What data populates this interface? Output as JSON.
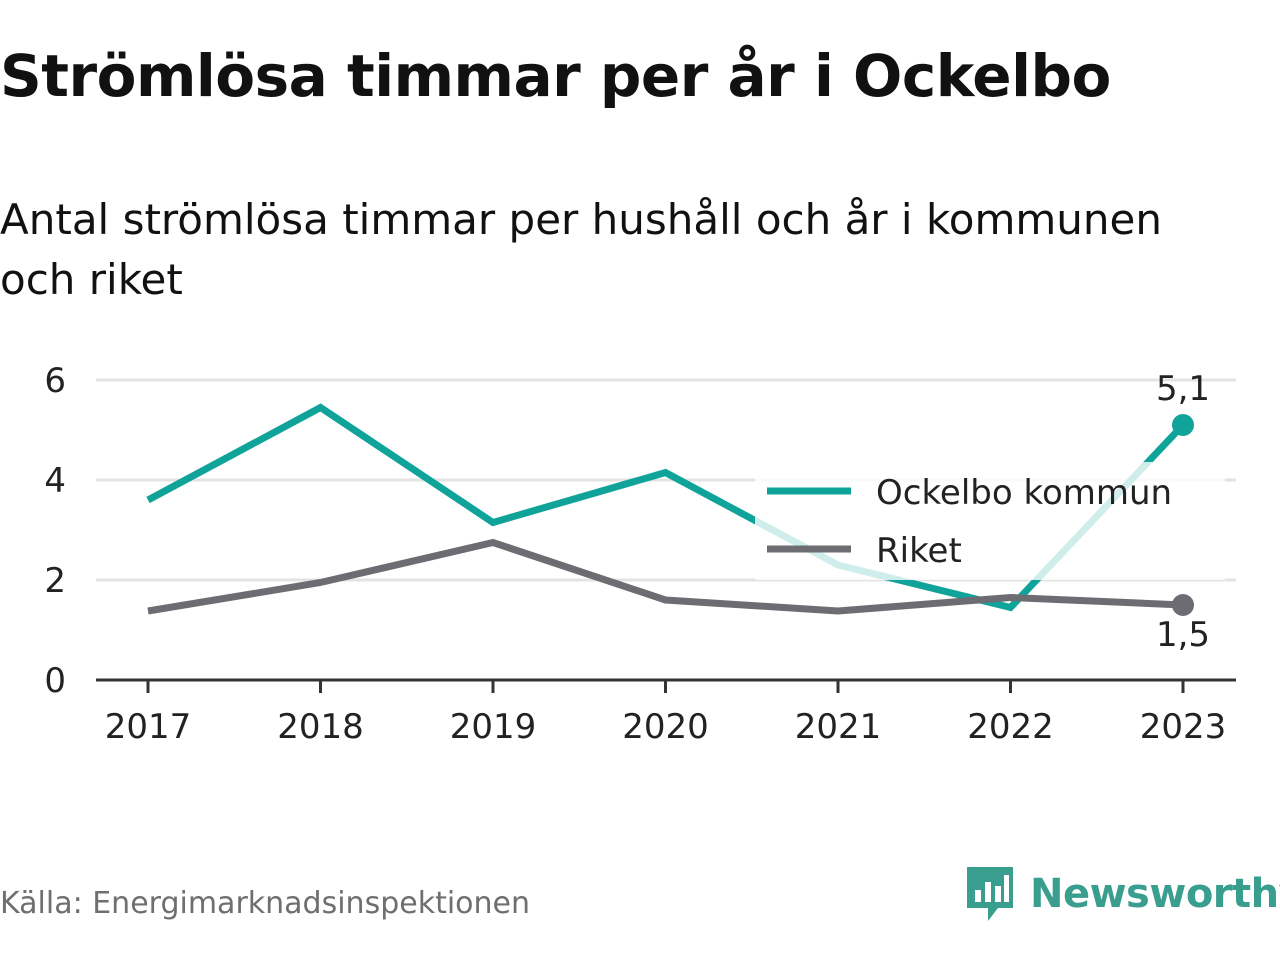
{
  "title": "Strömlösa timmar per år i Ockelbo",
  "subtitle": "Antal strömlösa timmar per hushåll och år i kommunen och riket",
  "source": "Källa: Energimarknadsinspektionen",
  "brand": {
    "name": "Newsworthy",
    "icon": "newsworthy-logo-icon",
    "color": "#3a9e8e"
  },
  "chart_data": {
    "type": "line",
    "categories": [
      "2017",
      "2018",
      "2019",
      "2020",
      "2021",
      "2022",
      "2023"
    ],
    "series": [
      {
        "name": "Ockelbo kommun",
        "values": [
          3.6,
          5.45,
          3.15,
          4.15,
          2.3,
          1.45,
          5.1
        ],
        "color": "#0fa39a"
      },
      {
        "name": "Riket",
        "values": [
          1.38,
          1.95,
          2.75,
          1.6,
          1.38,
          1.65,
          1.5
        ],
        "color": "#6d6c72"
      }
    ],
    "yticks": [
      "0",
      "2",
      "4",
      "6"
    ],
    "ylim": [
      0,
      6
    ],
    "end_labels": [
      "5,1",
      "1,5"
    ],
    "grid": true,
    "legend_position": "right"
  }
}
